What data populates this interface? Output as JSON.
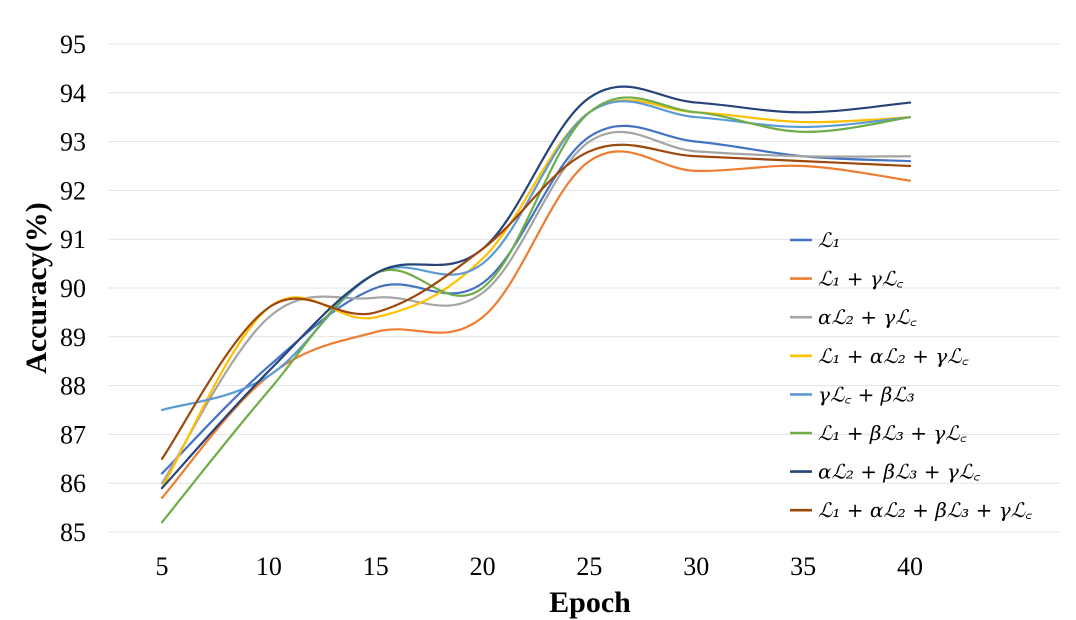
{
  "chart_data": {
    "type": "line",
    "xlabel": "Epoch",
    "ylabel": "Accuracy(%)",
    "x": [
      5,
      10,
      15,
      20,
      25,
      30,
      35,
      40
    ],
    "xticks": [
      5,
      10,
      15,
      20,
      25,
      30,
      35,
      40
    ],
    "yticks": [
      85,
      86,
      87,
      88,
      89,
      90,
      91,
      92,
      93,
      94,
      95
    ],
    "xlim": [
      0,
      45
    ],
    "ylim": [
      85,
      95
    ],
    "grid": "horizontal",
    "legend_position": "right",
    "series": [
      {
        "name": "ℒ₁",
        "color": "#4472C4",
        "values": [
          86.2,
          88.4,
          90.0,
          90.1,
          93.1,
          93.0,
          92.7,
          92.6
        ]
      },
      {
        "name": "ℒ₁ + γℒ꜀",
        "color": "#ED7D31",
        "values": [
          85.7,
          88.2,
          89.1,
          89.4,
          92.6,
          92.4,
          92.5,
          92.2
        ]
      },
      {
        "name": "αℒ₂ + γℒ꜀",
        "color": "#A5A5A5",
        "values": [
          86.0,
          89.4,
          89.8,
          89.9,
          93.0,
          92.8,
          92.7,
          92.7
        ]
      },
      {
        "name": "ℒ₁ + αℒ₂ + γℒ꜀",
        "color": "#FFC000",
        "values": [
          85.9,
          89.6,
          89.4,
          90.6,
          93.6,
          93.6,
          93.4,
          93.5
        ]
      },
      {
        "name": "γℒ꜀ + βℒ₃",
        "color": "#5B9BD5",
        "values": [
          87.5,
          88.2,
          90.3,
          90.5,
          93.6,
          93.5,
          93.3,
          93.5
        ]
      },
      {
        "name": "ℒ₁ + βℒ₃ + γℒ꜀",
        "color": "#70AD47",
        "values": [
          85.2,
          87.9,
          90.3,
          90.0,
          93.6,
          93.6,
          93.2,
          93.5
        ]
      },
      {
        "name": "αℒ₂ + βℒ₃ + γℒ꜀",
        "color": "#264478",
        "values": [
          85.9,
          88.3,
          90.3,
          90.8,
          93.9,
          93.8,
          93.6,
          93.8
        ]
      },
      {
        "name": "ℒ₁ + αℒ₂ + βℒ₃ + γℒ꜀",
        "color": "#9E480E",
        "values": [
          86.5,
          89.6,
          89.5,
          90.8,
          92.8,
          92.7,
          92.6,
          92.5
        ]
      }
    ]
  }
}
